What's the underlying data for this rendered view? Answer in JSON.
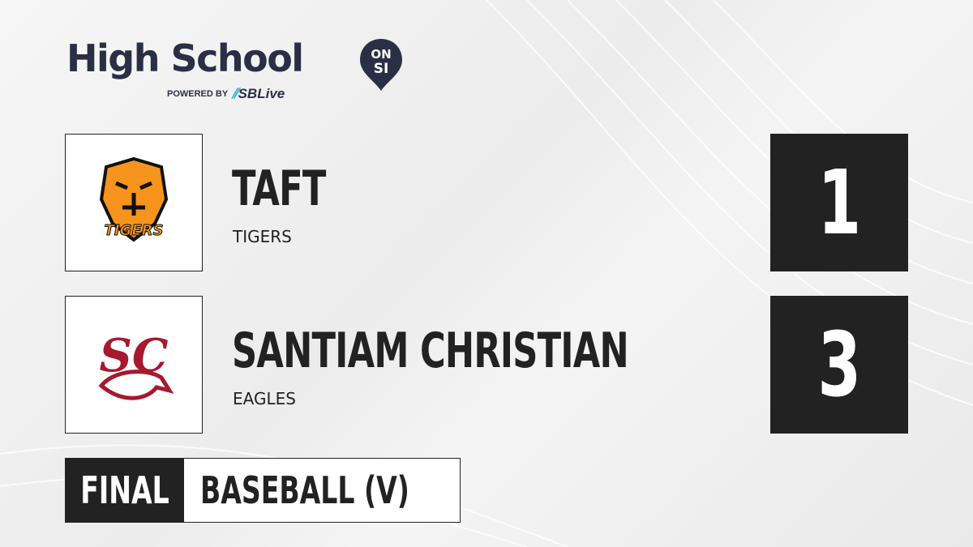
{
  "brand": {
    "title": "High School",
    "badge_top": "ON",
    "badge_bottom": "SI",
    "powered_by": "POWERED BY",
    "partner": "SBLive",
    "accent": "#1fa8e8",
    "text_color": "#2b2f45"
  },
  "teams": [
    {
      "name": "TAFT",
      "mascot": "TIGERS",
      "score": "1",
      "logo_text": "TIGERS",
      "logo_color": "#f7941d"
    },
    {
      "name": "SANTIAM CHRISTIAN",
      "mascot": "EAGLES",
      "score": "3",
      "logo_text": "SC",
      "logo_color": "#a6192e"
    }
  ],
  "status": {
    "state": "FINAL",
    "sport": "BASEBALL (V)"
  }
}
